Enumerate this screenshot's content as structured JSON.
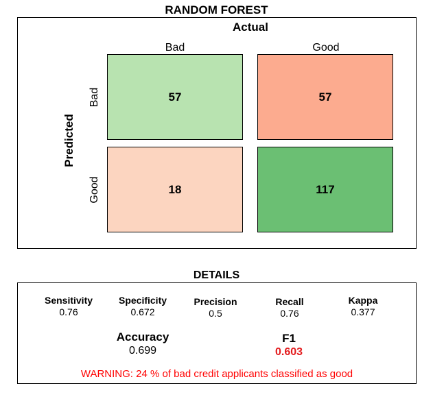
{
  "chart_data": {
    "type": "heatmap",
    "title": "RANDOM FOREST",
    "xlabel": "Actual",
    "ylabel": "Predicted",
    "x_categories": [
      "Bad",
      "Good"
    ],
    "y_categories": [
      "Bad",
      "Good"
    ],
    "cells": [
      {
        "predicted": "Bad",
        "actual": "Bad",
        "value": 57,
        "color": "#b8e3b0"
      },
      {
        "predicted": "Bad",
        "actual": "Good",
        "value": 57,
        "color": "#fcab8f"
      },
      {
        "predicted": "Good",
        "actual": "Bad",
        "value": 18,
        "color": "#fcd5c0"
      },
      {
        "predicted": "Good",
        "actual": "Good",
        "value": 117,
        "color": "#6bbf73"
      }
    ],
    "details": {
      "title": "DETAILS",
      "metrics": [
        {
          "name": "Sensitivity",
          "value": "0.76"
        },
        {
          "name": "Specificity",
          "value": "0.672"
        },
        {
          "name": "Precision",
          "value": "0.5"
        },
        {
          "name": "Recall",
          "value": "0.76"
        },
        {
          "name": "Kappa",
          "value": "0.377"
        }
      ],
      "accuracy": {
        "name": "Accuracy",
        "value": "0.699"
      },
      "f1": {
        "name": "F1",
        "value": "0.603",
        "color": "#e31a1c"
      },
      "warning": "WARNING:  24 % of bad credit applicants classified as good",
      "warning_color": "#ff0000"
    }
  }
}
